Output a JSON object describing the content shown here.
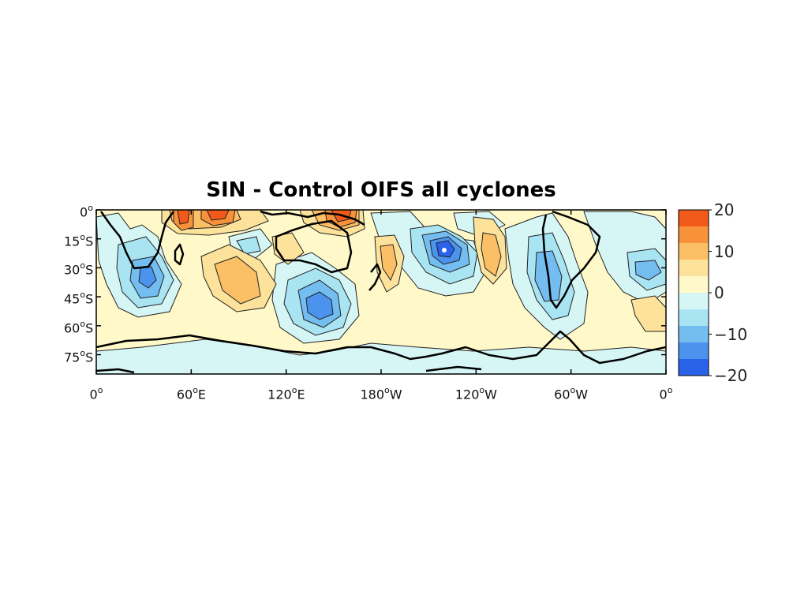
{
  "title": "SIN - Control OIFS all cyclones",
  "map": {
    "projection": "cylindrical-equidistant",
    "lon_range": [
      0,
      360
    ],
    "lat_range": [
      -85,
      0
    ],
    "x_ticks": [
      {
        "lon": 0,
        "num": "0",
        "suffix": ""
      },
      {
        "lon": 60,
        "num": "60",
        "suffix": "E"
      },
      {
        "lon": 120,
        "num": "120",
        "suffix": "E"
      },
      {
        "lon": 180,
        "num": "180",
        "suffix": "W"
      },
      {
        "lon": 240,
        "num": "120",
        "suffix": "W"
      },
      {
        "lon": 300,
        "num": "60",
        "suffix": "W"
      },
      {
        "lon": 360,
        "num": "0",
        "suffix": ""
      }
    ],
    "y_ticks": [
      {
        "lat": 0,
        "num": "0",
        "suffix": ""
      },
      {
        "lat": -15,
        "num": "15",
        "suffix": "S"
      },
      {
        "lat": -30,
        "num": "30",
        "suffix": "S"
      },
      {
        "lat": -45,
        "num": "45",
        "suffix": "S"
      },
      {
        "lat": -60,
        "num": "60",
        "suffix": "S"
      },
      {
        "lat": -75,
        "num": "75",
        "suffix": "S"
      }
    ],
    "degree_symbol": "o"
  },
  "colorbar": {
    "labels": [
      "20",
      "10",
      "0",
      "−10",
      "−20"
    ],
    "levels": [
      20,
      16,
      12,
      8,
      4,
      0,
      -4,
      -8,
      -12,
      -16,
      -20
    ],
    "colors": [
      "#f15a1a",
      "#f7923a",
      "#fbbf66",
      "#fde29c",
      "#fff8c8",
      "#d6f6f6",
      "#a9e4f2",
      "#74bdf0",
      "#4b93ec",
      "#2a63ea"
    ]
  },
  "chart_data": {
    "type": "heatmap",
    "title": "SIN - Control OIFS all cyclones",
    "x_range_deg_lon": [
      0,
      360
    ],
    "y_range_deg_lat": [
      -85,
      0
    ],
    "colorbar_range": [
      -20,
      20
    ],
    "features": [
      {
        "kind": "positive-max",
        "lon": 55,
        "lat": -5,
        "value": 16
      },
      {
        "kind": "positive-max",
        "lon": 75,
        "lat": -5,
        "value": 18
      },
      {
        "kind": "positive-max",
        "lon": 155,
        "lat": -7,
        "value": 14
      },
      {
        "kind": "positive-max",
        "lon": 85,
        "lat": -40,
        "value": 8
      },
      {
        "kind": "positive-max",
        "lon": 200,
        "lat": -30,
        "value": 6
      },
      {
        "kind": "positive-max",
        "lon": 250,
        "lat": -30,
        "value": 10
      },
      {
        "kind": "positive-max",
        "lon": 345,
        "lat": -50,
        "value": 4
      },
      {
        "kind": "negative-min",
        "lon": 40,
        "lat": -38,
        "value": -10
      },
      {
        "kind": "negative-min",
        "lon": 140,
        "lat": -52,
        "value": -12
      },
      {
        "kind": "negative-min",
        "lon": 222,
        "lat": -24,
        "value": -18
      },
      {
        "kind": "negative-min",
        "lon": 285,
        "lat": -45,
        "value": -10
      },
      {
        "kind": "negative-min",
        "lon": 350,
        "lat": -35,
        "value": -10
      },
      {
        "kind": "negative-min",
        "lon": 320,
        "lat": -10,
        "value": -6
      }
    ]
  }
}
